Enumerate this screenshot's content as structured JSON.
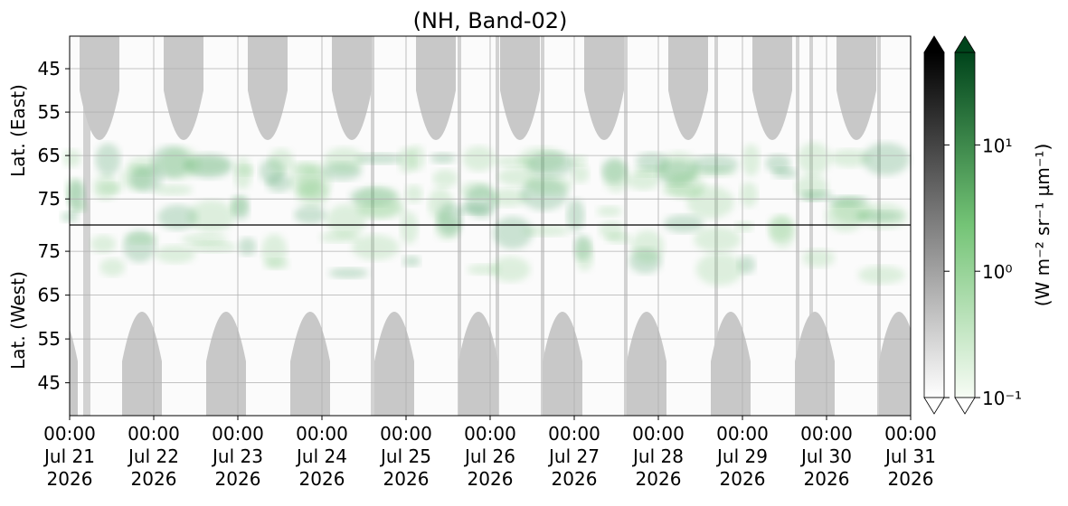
{
  "chart_data": {
    "type": "heatmap",
    "title": "(NH, Band-02)",
    "panels": [
      {
        "ylabel": "Lat. (East)",
        "ylim": [
          37.5,
          81
        ],
        "yticks": [
          45,
          55,
          65,
          75
        ]
      },
      {
        "ylabel": "Lat. (West)",
        "ylim": [
          81,
          37.5
        ],
        "yticks": [
          75,
          65,
          55,
          45
        ]
      }
    ],
    "xticks": [
      [
        "00:00",
        "Jul 21",
        "2026"
      ],
      [
        "00:00",
        "Jul 22",
        "2026"
      ],
      [
        "00:00",
        "Jul 23",
        "2026"
      ],
      [
        "00:00",
        "Jul 24",
        "2026"
      ],
      [
        "00:00",
        "Jul 25",
        "2026"
      ],
      [
        "00:00",
        "Jul 26",
        "2026"
      ],
      [
        "00:00",
        "Jul 27",
        "2026"
      ],
      [
        "00:00",
        "Jul 28",
        "2026"
      ],
      [
        "00:00",
        "Jul 29",
        "2026"
      ],
      [
        "00:00",
        "Jul 30",
        "2026"
      ],
      [
        "00:00",
        "Jul 31",
        "2026"
      ]
    ],
    "grid": true,
    "colorbar": {
      "label": "(W m⁻² sr⁻¹ µm⁻¹)",
      "scale": "log",
      "lim": [
        0.1,
        54
      ],
      "colors": [
        [
          "#ffffff",
          "#000000"
        ],
        [
          "#f7fcf5",
          "#00441b"
        ]
      ],
      "ticks": [
        {
          "value": 0.1,
          "label": "10⁻¹"
        },
        {
          "value": 1,
          "label": "10⁰"
        },
        {
          "value": 10,
          "label": "10¹"
        }
      ]
    }
  }
}
